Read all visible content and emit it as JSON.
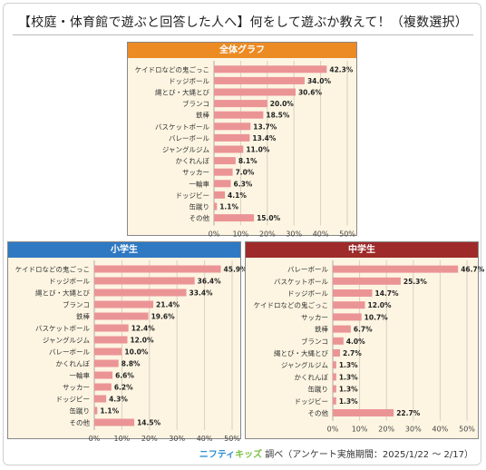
{
  "title": "【校庭・体育館で遊ぶと回答した人へ】何をして遊ぶか教えて！（複数選択）",
  "colors": {
    "bar": "#eb9496",
    "panel_bg": "#fdf5e2",
    "all_head": "#ec8b24",
    "elem_head": "#2f79c2",
    "middle_head": "#9e2a2a"
  },
  "footer": {
    "brand_a": "ニフティ",
    "brand_b": "キッズ",
    "text": "調べ（アンケート実施期間：2025/1/22 ～ 2/17）"
  },
  "chart_data": [
    {
      "type": "bar",
      "orientation": "horizontal",
      "title": "全体グラフ",
      "categories": [
        "ケイドロなどの鬼ごっこ",
        "ドッジボール",
        "縄とび・大縄とび",
        "ブランコ",
        "鉄棒",
        "バスケットボール",
        "バレーボール",
        "ジャングルジム",
        "かくれんぼ",
        "サッカー",
        "一輪車",
        "ドッジビー",
        "缶蹴り",
        "その他"
      ],
      "values": [
        42.3,
        34.0,
        30.6,
        20.0,
        18.5,
        13.7,
        13.4,
        11.0,
        8.1,
        7.0,
        6.3,
        4.1,
        1.1,
        15.0
      ],
      "value_labels": [
        "42.3%",
        "34.0%",
        "30.6%",
        "20.0%",
        "18.5%",
        "13.7%",
        "13.4%",
        "11.0%",
        "8.1%",
        "7.0%",
        "6.3%",
        "4.1%",
        "1.1%",
        "15.0%"
      ],
      "xlim": [
        0,
        50
      ],
      "ticks": [
        "0%",
        "10%",
        "20%",
        "30%",
        "40%",
        "50%"
      ],
      "grid": true
    },
    {
      "type": "bar",
      "orientation": "horizontal",
      "title": "小学生",
      "categories": [
        "ケイドロなどの鬼ごっこ",
        "ドッジボール",
        "縄とび・大縄とび",
        "ブランコ",
        "鉄棒",
        "バスケットボール",
        "ジャングルジム",
        "バレーボール",
        "かくれんぼ",
        "一輪車",
        "サッカー",
        "ドッジビー",
        "缶蹴り",
        "その他"
      ],
      "values": [
        45.9,
        36.4,
        33.4,
        21.4,
        19.6,
        12.4,
        12.0,
        10.0,
        8.8,
        6.6,
        6.2,
        4.3,
        1.1,
        14.5
      ],
      "value_labels": [
        "45.9%",
        "36.4%",
        "33.4%",
        "21.4%",
        "19.6%",
        "12.4%",
        "12.0%",
        "10.0%",
        "8.8%",
        "6.6%",
        "6.2%",
        "4.3%",
        "1.1%",
        "14.5%"
      ],
      "xlim": [
        0,
        50
      ],
      "ticks": [
        "0%",
        "10%",
        "20%",
        "30%",
        "40%",
        "50%"
      ],
      "grid": true
    },
    {
      "type": "bar",
      "orientation": "horizontal",
      "title": "中学生",
      "categories": [
        "バレーボール",
        "バスケットボール",
        "ドッジボール",
        "ケイドロなどの鬼ごっこ",
        "サッカー",
        "鉄棒",
        "ブランコ",
        "縄とび・大縄とび",
        "ジャングルジム",
        "かくれんぼ",
        "缶蹴り",
        "ドッジビー",
        "その他"
      ],
      "values": [
        46.7,
        25.3,
        14.7,
        12.0,
        10.7,
        6.7,
        4.0,
        2.7,
        1.3,
        1.3,
        1.3,
        1.3,
        22.7
      ],
      "value_labels": [
        "46.7%",
        "25.3%",
        "14.7%",
        "12.0%",
        "10.7%",
        "6.7%",
        "4.0%",
        "2.7%",
        "1.3%",
        "1.3%",
        "1.3%",
        "1.3%",
        "22.7%"
      ],
      "xlim": [
        0,
        50
      ],
      "ticks": [
        "0%",
        "10%",
        "20%",
        "30%",
        "40%",
        "50%"
      ],
      "grid": true
    }
  ]
}
